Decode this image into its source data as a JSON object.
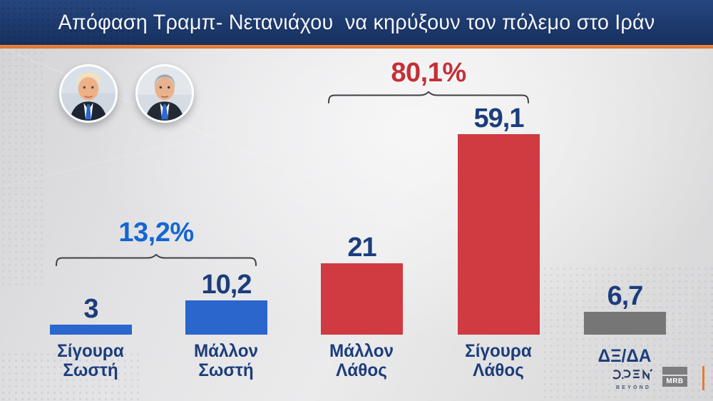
{
  "header": {
    "title": "Απόφαση Τραμπ- Νετανιάχου  να κηρύξουν τον πόλεμο στο Ιράν"
  },
  "chart_data": {
    "type": "bar",
    "title": "Απόφαση Τραμπ- Νετανιάχου να κηρύξουν τον πόλεμο στο Ιράν",
    "categories": [
      "Σίγουρα Σωστή",
      "Μάλλον Σωστή",
      "Μάλλον Λάθος",
      "Σίγουρα Λάθος",
      "ΔΞ/ΔΑ"
    ],
    "categories_lines": [
      [
        "Σίγουρα",
        "Σωστή"
      ],
      [
        "Μάλλον",
        "Σωστή"
      ],
      [
        "Μάλλον",
        "Λάθος"
      ],
      [
        "Σίγουρα",
        "Λάθος"
      ],
      [
        "ΔΞ/ΔΑ",
        ""
      ]
    ],
    "values": [
      3,
      10.2,
      21,
      59.1,
      6.7
    ],
    "value_labels": [
      "3",
      "10,2",
      "21",
      "59,1",
      "6,7"
    ],
    "bar_colors": [
      "#2a66cc",
      "#2a66cc",
      "#cf3b40",
      "#cf3b40",
      "#767676"
    ],
    "groups": [
      {
        "label": "13,2%",
        "color": "#1565d2",
        "spans": [
          "Σίγουρα Σωστή",
          "Μάλλον Σωστή"
        ]
      },
      {
        "label": "80,1%",
        "color": "#c43038",
        "spans": [
          "Μάλλον Λάθος",
          "Σίγουρα Λάθος"
        ]
      }
    ],
    "xlabel": "",
    "ylabel": "",
    "ylim": [
      0,
      60
    ],
    "grid": false,
    "legend": false,
    "units": "%"
  },
  "icons": {
    "trump_photo": "trump-portrait",
    "netanyahu_photo": "netanyahu-portrait"
  },
  "logos": {
    "open": "OPEN",
    "open_sub": "BEYOND",
    "mrb": "MRB"
  },
  "colors": {
    "banner_navy": "#1d3a6e",
    "accent_orange": "#e87a33",
    "value_navy": "#1c3d7c",
    "blue_bar": "#2a66cc",
    "red_bar": "#cf3b40",
    "gray_bar": "#767676",
    "brace": "#3f4042"
  }
}
